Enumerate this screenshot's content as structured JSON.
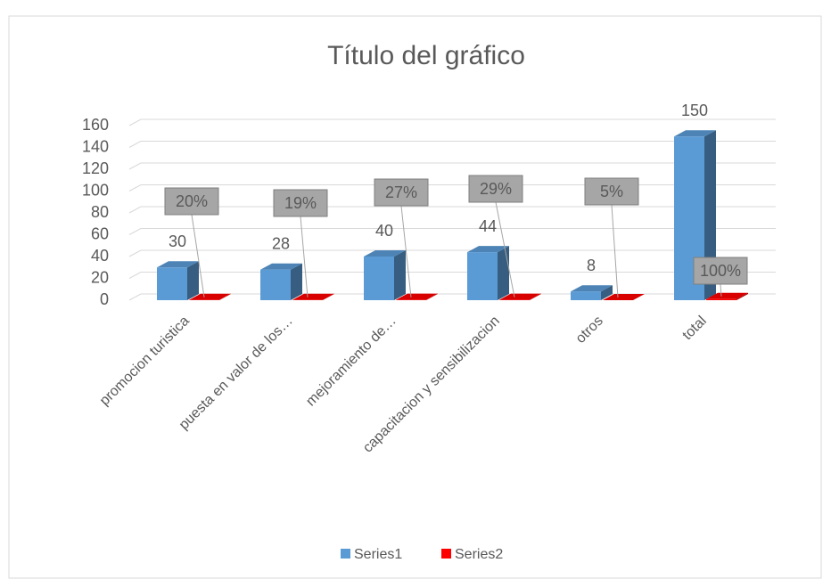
{
  "chart_data": {
    "type": "bar3d",
    "title": "Título del gráfico",
    "categories": [
      "promocion turistica",
      "puesta en valor de los…",
      "mejoramiento de…",
      "capacitacion y sensibilizacion",
      "otros",
      "total"
    ],
    "series": [
      {
        "name": "Series1",
        "color": "#5b9bd5",
        "values": [
          30,
          28,
          40,
          44,
          8,
          150
        ]
      },
      {
        "name": "Series2",
        "color": "#ff0000",
        "values": [
          0.2,
          0.19,
          0.27,
          0.29,
          0.05,
          1
        ],
        "value_labels": [
          "20%",
          "19%",
          "27%",
          "29%",
          "5%",
          "100%"
        ]
      }
    ],
    "ylim": [
      0,
      160
    ],
    "yticks": [
      0,
      20,
      40,
      60,
      80,
      100,
      120,
      140,
      160
    ],
    "grid": true,
    "legend": "bottom"
  }
}
